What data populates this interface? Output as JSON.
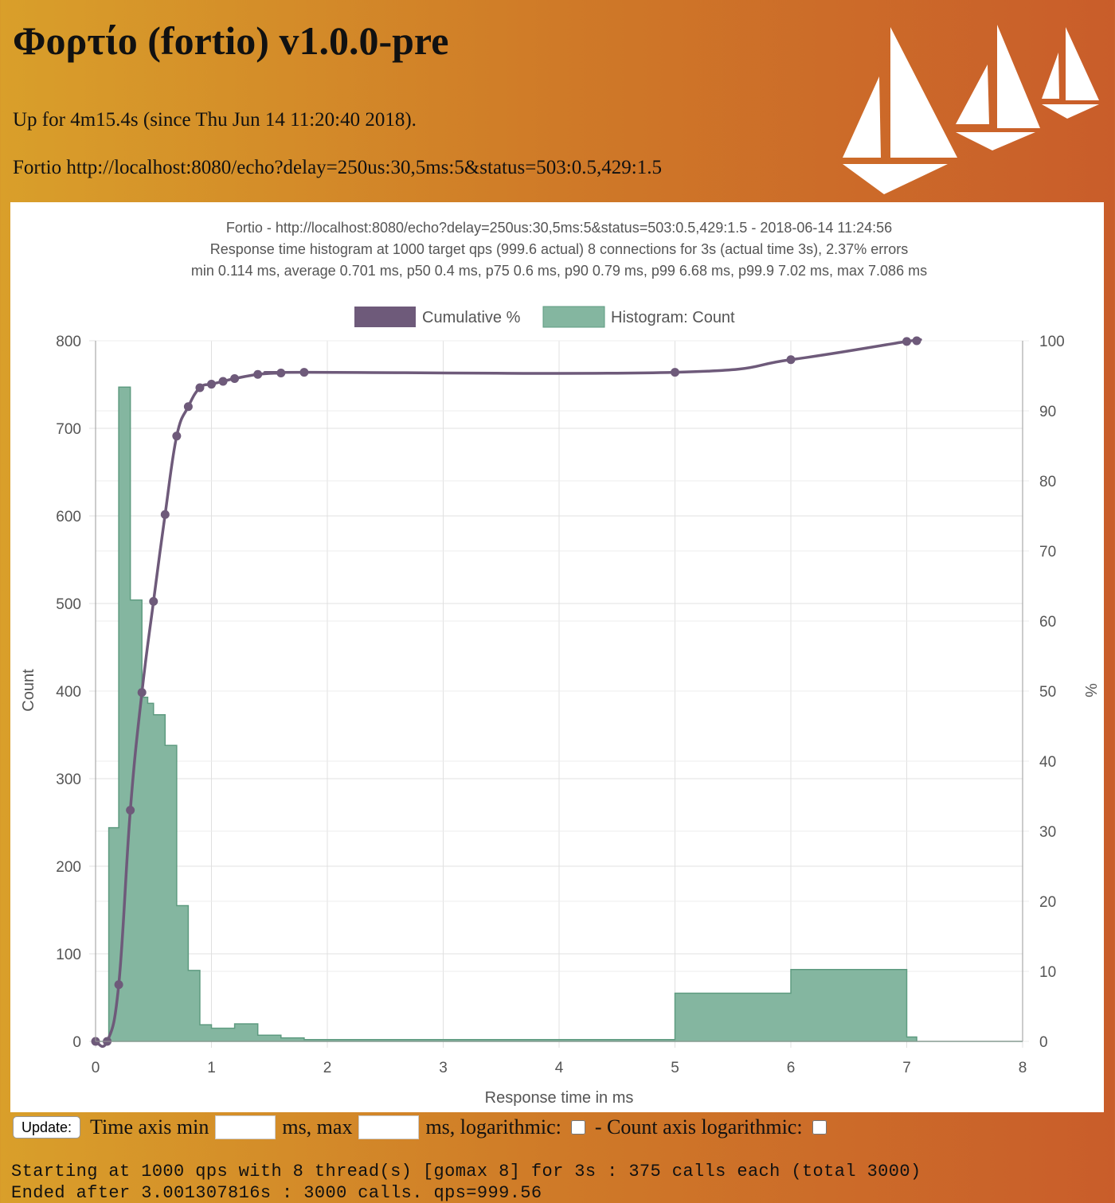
{
  "header": {
    "title": "Φορτίο (fortio) v1.0.0-pre",
    "uptime": "Up for 4m15.4s (since Thu Jun 14 11:20:40 2018).",
    "url_line": "Fortio http://localhost:8080/echo?delay=250us:30,5ms:5&status=503:0.5,429:1.5"
  },
  "controls": {
    "update_label": "Update:",
    "time_axis_min_label": "Time axis min",
    "ms_max_label": "ms, max",
    "ms_log_label": "ms, logarithmic:",
    "count_log_label": "- Count axis logarithmic:"
  },
  "log": {
    "line1": "Starting at 1000 qps with 8 thread(s) [gomax 8] for 3s : 375 calls each (total 3000)",
    "line2": "Ended after 3.001307816s : 3000 calls. qps=999.56"
  },
  "chart_data": {
    "type": "bar",
    "title": [
      "Fortio - http://localhost:8080/echo?delay=250us:30,5ms:5&status=503:0.5,429:1.5 - 2018-06-14 11:24:56",
      "Response time histogram at 1000 target qps (999.6 actual) 8 connections for 3s (actual time 3s), 2.37% errors",
      "min 0.114 ms, average 0.701 ms, p50 0.4 ms, p75 0.6 ms, p90 0.79 ms, p99 6.68 ms, p99.9 7.02 ms, max 7.086 ms"
    ],
    "xlabel": "Response time in ms",
    "ylabel": "Count",
    "y2label": "%",
    "xlim": [
      0,
      8
    ],
    "ylim": [
      0,
      800
    ],
    "y2lim": [
      0,
      100
    ],
    "xticks": [
      "0",
      "1",
      "2",
      "3",
      "4",
      "5",
      "6",
      "7",
      "8"
    ],
    "yticks": [
      "0",
      "100",
      "200",
      "300",
      "400",
      "500",
      "600",
      "700",
      "800"
    ],
    "y2ticks": [
      "0",
      "10",
      "20",
      "30",
      "40",
      "50",
      "60",
      "70",
      "80",
      "90",
      "100"
    ],
    "grid": true,
    "legend_position": "top",
    "legend": [
      "Cumulative %",
      "Histogram: Count"
    ],
    "colors": {
      "cumulative": "#6e5a7a",
      "histogram": "#84b6a0",
      "histogram_edge": "#5e9b80"
    },
    "series": [
      {
        "name": "Histogram: Count",
        "type": "histogram",
        "points": [
          [
            0,
            0
          ],
          [
            0.1,
            0
          ],
          [
            0.114,
            244
          ],
          [
            0.2,
            747
          ],
          [
            0.3,
            504
          ],
          [
            0.4,
            393
          ],
          [
            0.45,
            386
          ],
          [
            0.5,
            373
          ],
          [
            0.6,
            338
          ],
          [
            0.7,
            155
          ],
          [
            0.8,
            81
          ],
          [
            0.9,
            19
          ],
          [
            1,
            15
          ],
          [
            1.2,
            20
          ],
          [
            1.4,
            7
          ],
          [
            1.6,
            4
          ],
          [
            1.8,
            2
          ],
          [
            5,
            55
          ],
          [
            6,
            82
          ],
          [
            7,
            5
          ],
          [
            7.086,
            0
          ],
          [
            8,
            0
          ]
        ]
      },
      {
        "name": "Cumulative %",
        "type": "line",
        "points": [
          [
            0,
            0
          ],
          [
            0.1,
            0
          ],
          [
            0.2,
            8.1
          ],
          [
            0.3,
            33
          ],
          [
            0.4,
            49.8
          ],
          [
            0.5,
            62.8
          ],
          [
            0.6,
            75.2
          ],
          [
            0.7,
            86.4
          ],
          [
            0.8,
            90.6
          ],
          [
            0.9,
            93.3
          ],
          [
            1,
            93.8
          ],
          [
            1.1,
            94.2
          ],
          [
            1.2,
            94.6
          ],
          [
            1.4,
            95.2
          ],
          [
            1.6,
            95.4
          ],
          [
            1.8,
            95.5
          ],
          [
            5,
            95.5
          ],
          [
            6,
            97.3
          ],
          [
            7,
            99.9
          ],
          [
            7.086,
            100
          ]
        ]
      }
    ]
  }
}
